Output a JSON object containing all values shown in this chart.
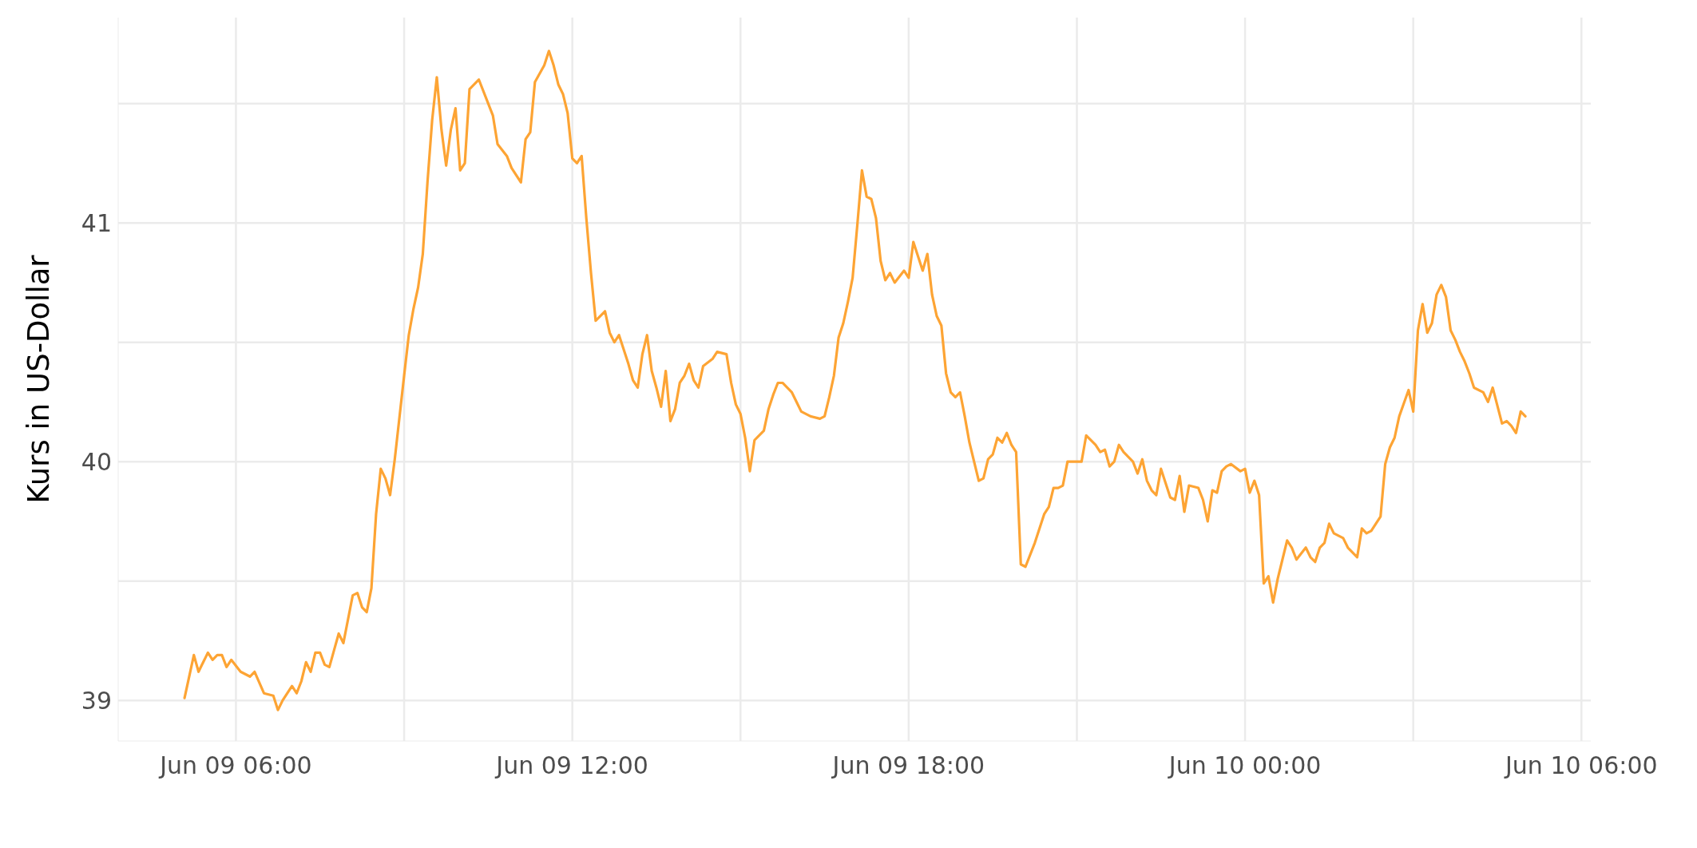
{
  "chart_data": {
    "type": "line",
    "ylabel": "Kurs in US-Dollar",
    "xlim": [
      "--06-09T03:54",
      "--06-10T06:10"
    ],
    "xticks": [
      {
        "value": "--06-09T06:00",
        "label": "Jun 09 06:00"
      },
      {
        "value": "--06-09T09:00",
        "label": null
      },
      {
        "value": "--06-09T12:00",
        "label": "Jun 09 12:00"
      },
      {
        "value": "--06-09T15:00",
        "label": null
      },
      {
        "value": "--06-09T18:00",
        "label": "Jun 09 18:00"
      },
      {
        "value": "--06-09T21:00",
        "label": null
      },
      {
        "value": "--06-10T00:00",
        "label": "Jun 10 00:00"
      },
      {
        "value": "--06-10T03:00",
        "label": null
      },
      {
        "value": "--06-10T06:00",
        "label": "Jun 10 06:00"
      }
    ],
    "ylim": [
      38.83,
      41.86
    ],
    "yticks": [
      39,
      {
        "value": 39.5,
        "label": null
      },
      40,
      {
        "value": 40.5,
        "label": null
      },
      41,
      {
        "value": 41.5,
        "label": null
      }
    ],
    "grid": true,
    "legend": false,
    "marker": "none",
    "line_style": "solid",
    "x": [
      "--06-09T05:05",
      "--06-09T05:15",
      "--06-09T05:20",
      "--06-09T05:30",
      "--06-09T05:35",
      "--06-09T05:40",
      "--06-09T05:45",
      "--06-09T05:50",
      "--06-09T05:55",
      "--06-09T06:05",
      "--06-09T06:15",
      "--06-09T06:20",
      "--06-09T06:30",
      "--06-09T06:40",
      "--06-09T06:45",
      "--06-09T06:50",
      "--06-09T07:00",
      "--06-09T07:05",
      "--06-09T07:10",
      "--06-09T07:15",
      "--06-09T07:20",
      "--06-09T07:25",
      "--06-09T07:30",
      "--06-09T07:35",
      "--06-09T07:40",
      "--06-09T07:45",
      "--06-09T07:50",
      "--06-09T07:55",
      "--06-09T08:00",
      "--06-09T08:05",
      "--06-09T08:10",
      "--06-09T08:15",
      "--06-09T08:20",
      "--06-09T08:25",
      "--06-09T08:30",
      "--06-09T08:35",
      "--06-09T08:40",
      "--06-09T08:45",
      "--06-09T08:50",
      "--06-09T09:00",
      "--06-09T09:05",
      "--06-09T09:10",
      "--06-09T09:15",
      "--06-09T09:20",
      "--06-09T09:25",
      "--06-09T09:30",
      "--06-09T09:35",
      "--06-09T09:40",
      "--06-09T09:45",
      "--06-09T09:50",
      "--06-09T09:55",
      "--06-09T10:00",
      "--06-09T10:05",
      "--06-09T10:10",
      "--06-09T10:20",
      "--06-09T10:30",
      "--06-09T10:35",
      "--06-09T10:40",
      "--06-09T10:50",
      "--06-09T10:55",
      "--06-09T11:05",
      "--06-09T11:10",
      "--06-09T11:15",
      "--06-09T11:20",
      "--06-09T11:30",
      "--06-09T11:35",
      "--06-09T11:40",
      "--06-09T11:45",
      "--06-09T11:50",
      "--06-09T11:55",
      "--06-09T12:00",
      "--06-09T12:05",
      "--06-09T12:10",
      "--06-09T12:15",
      "--06-09T12:20",
      "--06-09T12:25",
      "--06-09T12:35",
      "--06-09T12:40",
      "--06-09T12:45",
      "--06-09T12:50",
      "--06-09T13:00",
      "--06-09T13:05",
      "--06-09T13:10",
      "--06-09T13:15",
      "--06-09T13:20",
      "--06-09T13:25",
      "--06-09T13:30",
      "--06-09T13:35",
      "--06-09T13:40",
      "--06-09T13:45",
      "--06-09T13:50",
      "--06-09T13:55",
      "--06-09T14:00",
      "--06-09T14:05",
      "--06-09T14:10",
      "--06-09T14:15",
      "--06-09T14:20",
      "--06-09T14:30",
      "--06-09T14:35",
      "--06-09T14:45",
      "--06-09T14:50",
      "--06-09T14:55",
      "--06-09T15:00",
      "--06-09T15:05",
      "--06-09T15:10",
      "--06-09T15:15",
      "--06-09T15:25",
      "--06-09T15:30",
      "--06-09T15:35",
      "--06-09T15:40",
      "--06-09T15:45",
      "--06-09T15:55",
      "--06-09T16:05",
      "--06-09T16:15",
      "--06-09T16:25",
      "--06-09T16:30",
      "--06-09T16:35",
      "--06-09T16:40",
      "--06-09T16:45",
      "--06-09T16:50",
      "--06-09T16:55",
      "--06-09T17:00",
      "--06-09T17:05",
      "--06-09T17:10",
      "--06-09T17:15",
      "--06-09T17:20",
      "--06-09T17:25",
      "--06-09T17:30",
      "--06-09T17:35",
      "--06-09T17:40",
      "--06-09T17:45",
      "--06-09T17:55",
      "--06-09T18:00",
      "--06-09T18:05",
      "--06-09T18:15",
      "--06-09T18:20",
      "--06-09T18:25",
      "--06-09T18:30",
      "--06-09T18:35",
      "--06-09T18:40",
      "--06-09T18:45",
      "--06-09T18:50",
      "--06-09T18:55",
      "--06-09T19:00",
      "--06-09T19:05",
      "--06-09T19:10",
      "--06-09T19:15",
      "--06-09T19:20",
      "--06-09T19:25",
      "--06-09T19:30",
      "--06-09T19:35",
      "--06-09T19:40",
      "--06-09T19:45",
      "--06-09T19:50",
      "--06-09T19:55",
      "--06-09T20:00",
      "--06-09T20:05",
      "--06-09T20:15",
      "--06-09T20:25",
      "--06-09T20:30",
      "--06-09T20:35",
      "--06-09T20:40",
      "--06-09T20:45",
      "--06-09T20:50",
      "--06-09T21:05",
      "--06-09T21:10",
      "--06-09T21:20",
      "--06-09T21:25",
      "--06-09T21:30",
      "--06-09T21:35",
      "--06-09T21:40",
      "--06-09T21:45",
      "--06-09T21:50",
      "--06-09T21:55",
      "--06-09T22:00",
      "--06-09T22:05",
      "--06-09T22:10",
      "--06-09T22:15",
      "--06-09T22:20",
      "--06-09T22:25",
      "--06-09T22:30",
      "--06-09T22:40",
      "--06-09T22:45",
      "--06-09T22:50",
      "--06-09T22:55",
      "--06-09T23:00",
      "--06-09T23:10",
      "--06-09T23:15",
      "--06-09T23:20",
      "--06-09T23:25",
      "--06-09T23:30",
      "--06-09T23:35",
      "--06-09T23:40",
      "--06-09T23:45",
      "--06-09T23:55",
      "--06-10T00:00",
      "--06-10T00:05",
      "--06-10T00:10",
      "--06-10T00:15",
      "--06-10T00:20",
      "--06-10T00:25",
      "--06-10T00:30",
      "--06-10T00:35",
      "--06-10T00:40",
      "--06-10T00:45",
      "--06-10T00:50",
      "--06-10T00:55",
      "--06-10T01:05",
      "--06-10T01:10",
      "--06-10T01:15",
      "--06-10T01:20",
      "--06-10T01:25",
      "--06-10T01:30",
      "--06-10T01:35",
      "--06-10T01:45",
      "--06-10T01:50",
      "--06-10T01:55",
      "--06-10T02:00",
      "--06-10T02:05",
      "--06-10T02:10",
      "--06-10T02:15",
      "--06-10T02:25",
      "--06-10T02:30",
      "--06-10T02:35",
      "--06-10T02:40",
      "--06-10T02:45",
      "--06-10T02:55",
      "--06-10T03:00",
      "--06-10T03:05",
      "--06-10T03:10",
      "--06-10T03:15",
      "--06-10T03:20",
      "--06-10T03:25",
      "--06-10T03:30",
      "--06-10T03:35",
      "--06-10T03:40",
      "--06-10T03:45",
      "--06-10T03:50",
      "--06-10T03:55",
      "--06-10T04:00",
      "--06-10T04:05",
      "--06-10T04:15",
      "--06-10T04:20",
      "--06-10T04:25",
      "--06-10T04:35",
      "--06-10T04:40",
      "--06-10T04:45",
      "--06-10T04:50",
      "--06-10T04:55",
      "--06-10T05:00"
    ],
    "series": [
      {
        "color": "#fda434",
        "values": [
          39.01,
          39.19,
          39.12,
          39.2,
          39.17,
          39.19,
          39.19,
          39.14,
          39.17,
          39.12,
          39.1,
          39.12,
          39.03,
          39.02,
          38.96,
          39.0,
          39.06,
          39.03,
          39.08,
          39.16,
          39.12,
          39.2,
          39.2,
          39.15,
          39.14,
          39.21,
          39.28,
          39.24,
          39.34,
          39.44,
          39.45,
          39.39,
          39.37,
          39.47,
          39.78,
          39.97,
          39.93,
          39.86,
          40.01,
          40.36,
          40.53,
          40.64,
          40.73,
          40.87,
          41.17,
          41.43,
          41.61,
          41.39,
          41.24,
          41.39,
          41.48,
          41.22,
          41.25,
          41.56,
          41.6,
          41.5,
          41.45,
          41.33,
          41.28,
          41.23,
          41.17,
          41.35,
          41.38,
          41.59,
          41.66,
          41.72,
          41.66,
          41.58,
          41.54,
          41.46,
          41.27,
          41.25,
          41.28,
          41.02,
          40.79,
          40.59,
          40.63,
          40.54,
          40.5,
          40.53,
          40.41,
          40.34,
          40.31,
          40.45,
          40.53,
          40.38,
          40.31,
          40.23,
          40.38,
          40.17,
          40.22,
          40.33,
          40.36,
          40.41,
          40.34,
          40.31,
          40.4,
          40.43,
          40.46,
          40.45,
          40.33,
          40.24,
          40.2,
          40.1,
          39.96,
          40.09,
          40.13,
          40.22,
          40.28,
          40.33,
          40.33,
          40.29,
          40.21,
          40.19,
          40.18,
          40.19,
          40.27,
          40.36,
          40.52,
          40.58,
          40.67,
          40.77,
          40.99,
          41.22,
          41.11,
          41.1,
          41.02,
          40.84,
          40.76,
          40.79,
          40.75,
          40.8,
          40.77,
          40.92,
          40.8,
          40.87,
          40.7,
          40.61,
          40.57,
          40.37,
          40.29,
          40.27,
          40.29,
          40.19,
          40.08,
          40.0,
          39.92,
          39.93,
          40.01,
          40.03,
          40.1,
          40.08,
          40.12,
          40.07,
          40.04,
          39.57,
          39.56,
          39.66,
          39.78,
          39.81,
          39.89,
          39.89,
          39.9,
          40.0,
          40.0,
          40.11,
          40.07,
          40.04,
          40.05,
          39.98,
          40.0,
          40.07,
          40.04,
          40.02,
          40.0,
          39.95,
          40.01,
          39.92,
          39.88,
          39.86,
          39.97,
          39.85,
          39.84,
          39.94,
          39.79,
          39.9,
          39.89,
          39.84,
          39.75,
          39.88,
          39.87,
          39.96,
          39.98,
          39.99,
          39.96,
          39.97,
          39.87,
          39.92,
          39.86,
          39.49,
          39.52,
          39.41,
          39.51,
          39.59,
          39.67,
          39.64,
          39.59,
          39.64,
          39.6,
          39.58,
          39.64,
          39.66,
          39.74,
          39.7,
          39.68,
          39.64,
          39.62,
          39.6,
          39.72,
          39.7,
          39.71,
          39.77,
          39.99,
          40.06,
          40.1,
          40.19,
          40.3,
          40.21,
          40.55,
          40.66,
          40.54,
          40.58,
          40.7,
          40.74,
          40.69,
          40.55,
          40.51,
          40.46,
          40.42,
          40.37,
          40.31,
          40.29,
          40.25,
          40.31,
          40.16,
          40.17,
          40.15,
          40.12,
          40.21,
          40.19
        ]
      }
    ]
  }
}
